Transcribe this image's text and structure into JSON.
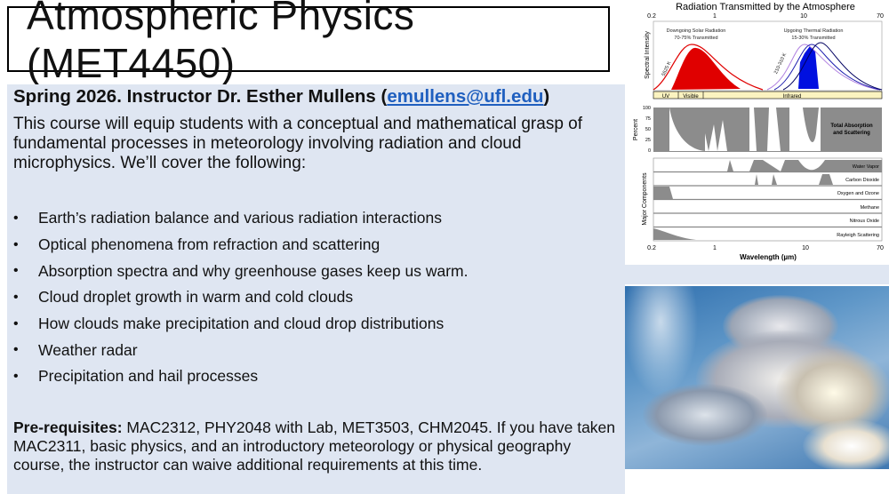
{
  "slide": {
    "title": "Atmospheric Physics (MET4450)",
    "heading_prefix": "Spring 2026. Instructor Dr. Esther Mullens (",
    "email": "emullens@ufl.edu",
    "heading_suffix": ")",
    "intro": "This course will equip students with a conceptual and mathematical grasp of fundamental processes in meteorology involving radiation and cloud microphysics. We’ll cover the following:",
    "bullet_glyph": "•",
    "bullets": [
      "Earth’s radiation balance and various radiation interactions",
      "Optical phenomena from refraction and scattering",
      "Absorption spectra and why greenhouse gases keep us warm.",
      "Cloud droplet growth in warm and cold clouds",
      "How clouds make precipitation and cloud drop distributions",
      "Weather radar",
      "Precipitation and hail processes"
    ],
    "prereq_label": "Pre-requisites:",
    "prereq_text": " MAC2312, PHY2048 with Lab, MET3503, CHM2045. If you have taken MAC2311, basic physics, and an introductory meteorology or physical geography course, the instructor can waive additional requirements at this time."
  },
  "figure": {
    "title": "Radiation Transmitted by the Atmosphere",
    "x_ticks": [
      "0.2",
      "1",
      "10",
      "70"
    ],
    "xlabel": "Wavelength (µm)",
    "panel1_ylabel": "Spectral Intensity",
    "solar_label_1": "Downgoing Solar Radiation",
    "solar_label_2": "70-75% Transmitted",
    "thermal_label_1": "Upgoing Thermal Radiation",
    "thermal_label_2": "15-30% Transmitted",
    "solar_temp": "5525 K",
    "thermal_temp": "210-310 K",
    "bands": [
      "UV",
      "Visible",
      "Infrared"
    ],
    "panel2_ylabel": "Percent",
    "panel2_ticks": [
      "100",
      "75",
      "50",
      "25",
      "0"
    ],
    "panel2_label_1": "Total Absorption",
    "panel2_label_2": "and Scattering",
    "panel3_ylabel": "Major Components",
    "components": [
      "Water Vapor",
      "Carbon Dioxide",
      "Oxygen and Ozone",
      "Methane",
      "Nitrous Oxide",
      "Rayleigh Scattering"
    ],
    "colors": {
      "solar": "#e00000",
      "thermal": "#0010e0",
      "absorption": "#8c8c8c",
      "band": "#fbf3c0"
    }
  }
}
